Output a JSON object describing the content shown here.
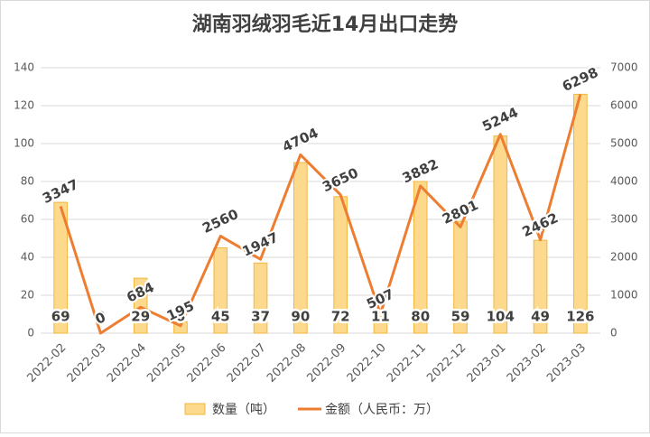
{
  "chart_data": {
    "type": "combo",
    "title": "湖南羽绒羽毛近14月出口走势",
    "categories": [
      "2022-02",
      "2022-03",
      "2022-04",
      "2022-05",
      "2022-06",
      "2022-07",
      "2022-08",
      "2022-09",
      "2022-10",
      "2022-11",
      "2022-12",
      "2023-01",
      "2023-02",
      "2023-03"
    ],
    "series": [
      {
        "name": "数量（吨）",
        "type": "bar",
        "color": "#fcd98c",
        "values": [
          69,
          0,
          29,
          6,
          45,
          37,
          90,
          72,
          11,
          80,
          59,
          104,
          49,
          126
        ]
      },
      {
        "name": "金额（人民币：万）",
        "type": "line",
        "axis": "y2",
        "color": "#ed7d31",
        "values": [
          3347,
          0,
          684,
          195,
          2560,
          1947,
          4704,
          3650,
          507,
          3882,
          2801,
          5244,
          2462,
          6298
        ]
      }
    ],
    "ylim": [
      0,
      140
    ],
    "yticks": [
      0,
      20,
      40,
      60,
      80,
      100,
      120,
      140
    ],
    "y2lim": [
      0,
      7000
    ],
    "y2ticks": [
      0,
      1000,
      2000,
      3000,
      4000,
      5000,
      6000,
      7000
    ],
    "grid": true,
    "legend": "bottom"
  }
}
